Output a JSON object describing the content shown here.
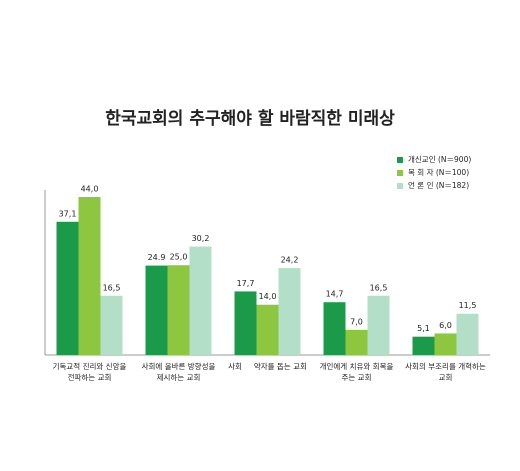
{
  "chart_data": {
    "type": "bar",
    "title": "한국교회의 추구해야 할 바람직한 미래상",
    "categories": [
      "기독교적 진리와 신앙을\n전파하는 교회",
      "사회에 올바른 방향성을\n제시하는 교회",
      "사회     약자를 돕는 교회",
      "개인에게 치유와 회복을\n주는 교회",
      "사회의 부조리를 개혁하는\n교회"
    ],
    "series": [
      {
        "name": "개신교인 (N＝900)",
        "color": "#1b9a4a",
        "values": [
          37.1,
          24.9,
          17.7,
          14.7,
          5.1
        ],
        "value_labels": [
          "37,1",
          "24.9",
          "17,7",
          "14,7",
          "5,1"
        ]
      },
      {
        "name": "목 회 자 (N＝100)",
        "color": "#8dc63f",
        "values": [
          44.0,
          25.0,
          14.0,
          7.0,
          6.0
        ],
        "value_labels": [
          "44,0",
          "25,0",
          "14,0",
          "7,0",
          "6,0"
        ]
      },
      {
        "name": "언 론 인 (N＝182)",
        "color": "#b3dfc8",
        "values": [
          16.5,
          30.2,
          24.2,
          16.5,
          11.5
        ],
        "value_labels": [
          "16,5",
          "30,2",
          "24,2",
          "16,5",
          "11,5"
        ]
      }
    ],
    "ylim": [
      0,
      44
    ]
  }
}
